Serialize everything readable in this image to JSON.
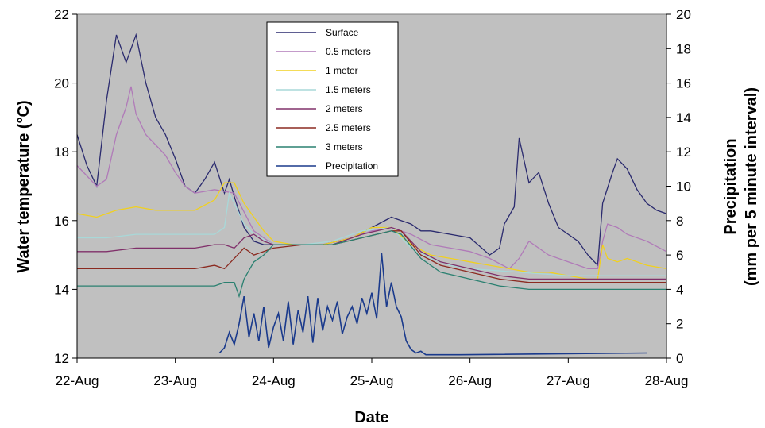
{
  "chart_data": {
    "type": "line",
    "xlabel": "Date",
    "ylabel": "Water temperature (°C)",
    "y2label_line1": "Precipitation",
    "y2label_line2": "(mm per 5 minute interval)",
    "x_ticks": [
      "22-Aug",
      "23-Aug",
      "24-Aug",
      "25-Aug",
      "26-Aug",
      "27-Aug",
      "28-Aug"
    ],
    "xlim": [
      0,
      6
    ],
    "ylim": [
      12,
      22
    ],
    "y_ticks": [
      12,
      14,
      16,
      18,
      20,
      22
    ],
    "y2lim": [
      0,
      20
    ],
    "y2_ticks": [
      0,
      2,
      4,
      6,
      8,
      10,
      12,
      14,
      16,
      18,
      20
    ],
    "grid": false,
    "legend_position": "top-center",
    "plot_background": "#c0c0c0",
    "series": [
      {
        "name": "Surface",
        "axis": "left",
        "color": "#2a2a6e",
        "x": [
          0,
          0.1,
          0.2,
          0.3,
          0.4,
          0.5,
          0.55,
          0.6,
          0.7,
          0.8,
          0.9,
          1.0,
          1.1,
          1.2,
          1.3,
          1.4,
          1.5,
          1.55,
          1.6,
          1.7,
          1.8,
          1.9,
          2.0,
          2.2,
          2.5,
          2.8,
          3.0,
          3.2,
          3.4,
          3.5,
          3.6,
          3.8,
          4.0,
          4.2,
          4.3,
          4.35,
          4.45,
          4.5,
          4.6,
          4.7,
          4.8,
          4.9,
          5.0,
          5.1,
          5.2,
          5.3,
          5.35,
          5.45,
          5.5,
          5.6,
          5.7,
          5.8,
          5.9,
          6.0
        ],
        "y": [
          18.5,
          17.6,
          17.0,
          19.5,
          21.4,
          20.6,
          21.0,
          21.4,
          20.0,
          19.0,
          18.5,
          17.8,
          17.0,
          16.8,
          17.2,
          17.7,
          16.8,
          17.2,
          16.7,
          15.8,
          15.4,
          15.3,
          15.3,
          15.3,
          15.3,
          15.5,
          15.8,
          16.1,
          15.9,
          15.7,
          15.7,
          15.6,
          15.5,
          15.0,
          15.2,
          15.9,
          16.4,
          18.4,
          17.1,
          17.4,
          16.5,
          15.8,
          15.6,
          15.4,
          15.0,
          14.7,
          16.5,
          17.4,
          17.8,
          17.5,
          16.9,
          16.5,
          16.3,
          16.2
        ]
      },
      {
        "name": "0.5 meters",
        "axis": "left",
        "color": "#b07ab8",
        "x": [
          0,
          0.1,
          0.2,
          0.3,
          0.4,
          0.5,
          0.55,
          0.6,
          0.7,
          0.8,
          0.9,
          1.0,
          1.1,
          1.2,
          1.4,
          1.6,
          1.8,
          2.0,
          2.2,
          2.5,
          2.8,
          3.0,
          3.2,
          3.4,
          3.6,
          3.8,
          4.0,
          4.2,
          4.4,
          4.5,
          4.6,
          4.8,
          5.0,
          5.2,
          5.3,
          5.35,
          5.4,
          5.5,
          5.6,
          5.8,
          6.0
        ],
        "y": [
          17.6,
          17.3,
          17.0,
          17.2,
          18.5,
          19.3,
          19.9,
          19.1,
          18.5,
          18.2,
          17.9,
          17.4,
          17.0,
          16.8,
          16.9,
          16.8,
          15.7,
          15.3,
          15.3,
          15.3,
          15.5,
          15.7,
          15.8,
          15.6,
          15.3,
          15.2,
          15.1,
          14.9,
          14.6,
          14.9,
          15.4,
          15.0,
          14.8,
          14.6,
          14.6,
          15.4,
          15.9,
          15.8,
          15.6,
          15.4,
          15.1
        ]
      },
      {
        "name": "1 meter",
        "axis": "left",
        "color": "#f0d020",
        "x": [
          0,
          0.2,
          0.4,
          0.6,
          0.8,
          1.0,
          1.2,
          1.4,
          1.5,
          1.6,
          1.7,
          1.8,
          1.9,
          2.0,
          2.2,
          2.5,
          2.8,
          3.0,
          3.2,
          3.4,
          3.6,
          3.8,
          4.0,
          4.2,
          4.4,
          4.6,
          4.8,
          5.0,
          5.2,
          5.3,
          5.35,
          5.4,
          5.5,
          5.6,
          5.8,
          6.0
        ],
        "y": [
          16.2,
          16.1,
          16.3,
          16.4,
          16.3,
          16.3,
          16.3,
          16.6,
          17.1,
          17.1,
          16.5,
          16.1,
          15.7,
          15.4,
          15.3,
          15.3,
          15.5,
          15.8,
          15.8,
          15.3,
          15.0,
          14.9,
          14.8,
          14.7,
          14.6,
          14.5,
          14.5,
          14.4,
          14.3,
          14.3,
          15.3,
          14.9,
          14.8,
          14.9,
          14.7,
          14.6
        ]
      },
      {
        "name": "1.5 meters",
        "axis": "left",
        "color": "#a8d8d8",
        "x": [
          0,
          0.3,
          0.6,
          0.9,
          1.2,
          1.4,
          1.5,
          1.55,
          1.6,
          1.7,
          1.8,
          2.0,
          2.3,
          2.6,
          2.9,
          3.2,
          3.4,
          3.6,
          3.8,
          4.0,
          4.5,
          5.0,
          5.5,
          6.0
        ],
        "y": [
          15.5,
          15.5,
          15.6,
          15.6,
          15.6,
          15.6,
          15.8,
          16.8,
          16.5,
          15.9,
          15.6,
          15.3,
          15.3,
          15.4,
          15.7,
          15.8,
          15.2,
          14.9,
          14.7,
          14.6,
          14.5,
          14.4,
          14.4,
          14.4
        ]
      },
      {
        "name": "2 meters",
        "axis": "left",
        "color": "#80306a",
        "x": [
          0,
          0.3,
          0.6,
          0.9,
          1.2,
          1.4,
          1.5,
          1.6,
          1.7,
          1.8,
          1.9,
          2.0,
          2.3,
          2.6,
          2.9,
          3.2,
          3.3,
          3.5,
          3.7,
          4.0,
          4.3,
          4.6,
          5.0,
          5.5,
          6.0
        ],
        "y": [
          15.1,
          15.1,
          15.2,
          15.2,
          15.2,
          15.3,
          15.3,
          15.2,
          15.5,
          15.6,
          15.4,
          15.3,
          15.3,
          15.3,
          15.6,
          15.8,
          15.7,
          15.1,
          14.8,
          14.6,
          14.4,
          14.3,
          14.3,
          14.3,
          14.3
        ]
      },
      {
        "name": "2.5 meters",
        "axis": "left",
        "color": "#8b2a20",
        "x": [
          0,
          0.3,
          0.6,
          0.9,
          1.2,
          1.4,
          1.5,
          1.6,
          1.7,
          1.8,
          1.9,
          2.0,
          2.3,
          2.6,
          2.9,
          3.2,
          3.3,
          3.5,
          3.7,
          4.0,
          4.3,
          4.6,
          5.0,
          5.5,
          6.0
        ],
        "y": [
          14.6,
          14.6,
          14.6,
          14.6,
          14.6,
          14.7,
          14.6,
          14.9,
          15.2,
          15.0,
          15.1,
          15.2,
          15.3,
          15.3,
          15.5,
          15.7,
          15.7,
          15.0,
          14.7,
          14.5,
          14.3,
          14.2,
          14.2,
          14.2,
          14.2
        ]
      },
      {
        "name": "3 meters",
        "axis": "left",
        "color": "#2a8070",
        "x": [
          0,
          0.3,
          0.6,
          0.9,
          1.2,
          1.4,
          1.5,
          1.6,
          1.65,
          1.7,
          1.8,
          1.9,
          2.0,
          2.3,
          2.6,
          2.9,
          3.2,
          3.3,
          3.5,
          3.7,
          4.0,
          4.3,
          4.6,
          5.0,
          5.5,
          6.0
        ],
        "y": [
          14.1,
          14.1,
          14.1,
          14.1,
          14.1,
          14.1,
          14.2,
          14.2,
          13.8,
          14.3,
          14.8,
          15.0,
          15.3,
          15.3,
          15.3,
          15.5,
          15.7,
          15.6,
          14.9,
          14.5,
          14.3,
          14.1,
          14.0,
          14.0,
          14.0,
          14.0
        ]
      },
      {
        "name": "Precipitation",
        "axis": "right",
        "color": "#1a3a8c",
        "x": [
          1.45,
          1.5,
          1.55,
          1.6,
          1.65,
          1.7,
          1.75,
          1.8,
          1.85,
          1.9,
          1.95,
          2.0,
          2.05,
          2.1,
          2.15,
          2.2,
          2.25,
          2.3,
          2.35,
          2.4,
          2.45,
          2.5,
          2.55,
          2.6,
          2.65,
          2.7,
          2.75,
          2.8,
          2.85,
          2.9,
          2.95,
          3.0,
          3.05,
          3.1,
          3.15,
          3.2,
          3.25,
          3.3,
          3.35,
          3.4,
          3.45,
          3.5,
          3.55,
          3.6,
          3.9,
          5.8
        ],
        "y": [
          0.3,
          0.6,
          1.5,
          0.8,
          2.0,
          3.6,
          1.2,
          2.6,
          1.0,
          3.0,
          0.6,
          1.8,
          2.6,
          1.0,
          3.3,
          0.8,
          2.8,
          1.5,
          3.6,
          0.9,
          3.5,
          1.6,
          3.0,
          2.2,
          3.3,
          1.4,
          2.4,
          3.0,
          2.0,
          3.5,
          2.6,
          3.8,
          2.3,
          6.1,
          3.0,
          4.4,
          3.0,
          2.4,
          1.0,
          0.5,
          0.3,
          0.4,
          0.2,
          0.2,
          0.2,
          0.3
        ]
      }
    ]
  }
}
